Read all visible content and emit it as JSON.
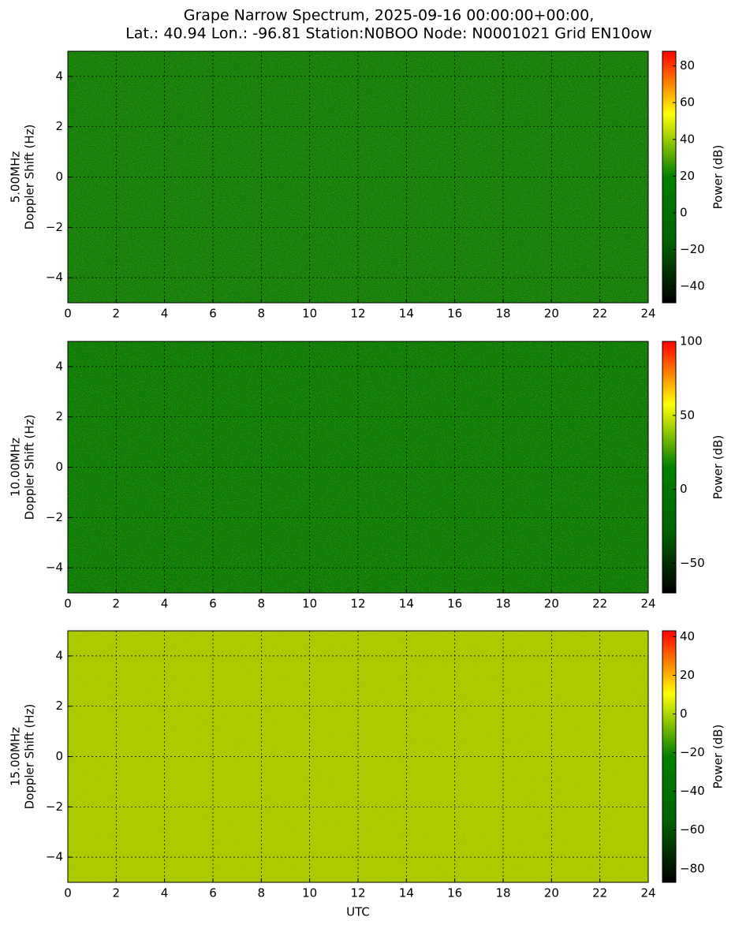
{
  "title": [
    "Grape Narrow Spectrum, 2025-09-16 00:00:00+00:00,",
    "Lat.: 40.94 Lon.: -96.81 Station:N0BOO Node: N0001021 Grid EN10ow"
  ],
  "chart_data": [
    {
      "type": "heatmap",
      "ylabel": [
        "5.00MHz",
        "Doppler Shift (Hz)"
      ],
      "background": "#127d0c",
      "xlim": [
        0,
        24
      ],
      "xticks": [
        0,
        2,
        4,
        6,
        8,
        10,
        12,
        14,
        16,
        18,
        20,
        22,
        24
      ],
      "ylim": [
        -5,
        5
      ],
      "yticks": [
        {
          "value": -4,
          "label": "−4"
        },
        {
          "value": -2,
          "label": "−2"
        },
        0,
        2,
        4
      ],
      "grid": true,
      "colormap": [
        "#000000",
        "#006400",
        "#008000",
        "#ffff00",
        "#ff0000"
      ],
      "colorbar": {
        "label": "Power (dB)",
        "lim": [
          -49,
          88
        ],
        "ticks": [
          {
            "value": -40,
            "label": "−40"
          },
          {
            "value": -20,
            "label": "−20"
          },
          0,
          20,
          40,
          60,
          80
        ]
      }
    },
    {
      "type": "heatmap",
      "ylabel": [
        "10.00MHz",
        "Doppler Shift (Hz)"
      ],
      "background": "#0b7a08",
      "xlim": [
        0,
        24
      ],
      "xticks": [
        0,
        2,
        4,
        6,
        8,
        10,
        12,
        14,
        16,
        18,
        20,
        22,
        24
      ],
      "ylim": [
        -5,
        5
      ],
      "yticks": [
        {
          "value": -4,
          "label": "−4"
        },
        {
          "value": -2,
          "label": "−2"
        },
        0,
        2,
        4
      ],
      "grid": true,
      "colormap": [
        "#000000",
        "#006400",
        "#008000",
        "#ffff00",
        "#ff0000"
      ],
      "colorbar": {
        "label": "Power (dB)",
        "lim": [
          -70,
          100
        ],
        "ticks": [
          {
            "value": -50,
            "label": "−50"
          },
          0,
          50,
          100
        ]
      }
    },
    {
      "type": "heatmap",
      "ylabel": [
        "15.00MHz",
        "Doppler Shift (Hz)"
      ],
      "xlabel": "UTC",
      "background": "#a9c800",
      "xlim": [
        0,
        24
      ],
      "xticks": [
        0,
        2,
        4,
        6,
        8,
        10,
        12,
        14,
        16,
        18,
        20,
        22,
        24
      ],
      "ylim": [
        -5,
        5
      ],
      "yticks": [
        {
          "value": -4,
          "label": "−4"
        },
        {
          "value": -2,
          "label": "−2"
        },
        0,
        2,
        4
      ],
      "grid": true,
      "colormap": [
        "#000000",
        "#006400",
        "#008000",
        "#ffff00",
        "#ff0000"
      ],
      "colorbar": {
        "label": "Power (dB)",
        "lim": [
          -87,
          43
        ],
        "ticks": [
          {
            "value": -80,
            "label": "−80"
          },
          {
            "value": -60,
            "label": "−60"
          },
          {
            "value": -40,
            "label": "−40"
          },
          {
            "value": -20,
            "label": "−20"
          },
          0,
          20,
          40
        ]
      }
    }
  ]
}
